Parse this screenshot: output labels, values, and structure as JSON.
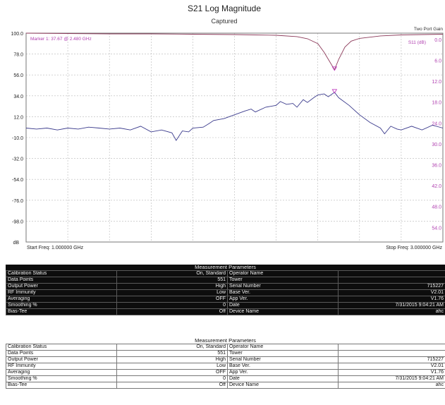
{
  "header": {
    "title": "S21 Log Magnitude",
    "subtitle": "Captured",
    "two_port_label": "Two Port Gain"
  },
  "chart_data": {
    "type": "line",
    "title": "S21 Log Magnitude",
    "subtitle": "Captured",
    "y_unit": "dB",
    "y_left_ticks": [
      "100.0",
      "78.0",
      "56.0",
      "34.0",
      "12.0",
      "-10.0",
      "-32.0",
      "-54.0",
      "-76.0",
      "-98.0"
    ],
    "y_left_range": [
      -120,
      100
    ],
    "y_right_label": "S11 (dB)",
    "y_right_ticks": [
      "0.0",
      "6.0",
      "12.0",
      "18.0",
      "24.0",
      "30.0",
      "36.0",
      "42.0",
      "48.0",
      "54.0"
    ],
    "y_right_range": [
      0,
      60
    ],
    "x_range_ghz": [
      1.0,
      3.0
    ],
    "start_label": "Start Freq: 1.000000 GHz",
    "stop_label": "Stop Freq: 3.000000 GHz",
    "marker_label": "Marker 1: 37.67 @ 2.480 GHz",
    "marker": {
      "freq": 2.48,
      "s21": 37.67,
      "s11": 10.5
    },
    "grid": true,
    "series": [
      {
        "name": "S21",
        "color": "#3a3a8c",
        "x": [
          1.0,
          1.05,
          1.1,
          1.15,
          1.2,
          1.25,
          1.3,
          1.35,
          1.4,
          1.45,
          1.5,
          1.55,
          1.6,
          1.65,
          1.7,
          1.72,
          1.75,
          1.78,
          1.8,
          1.85,
          1.88,
          1.9,
          1.95,
          2.0,
          2.05,
          2.08,
          2.1,
          2.15,
          2.2,
          2.22,
          2.25,
          2.28,
          2.3,
          2.33,
          2.35,
          2.38,
          2.4,
          2.43,
          2.45,
          2.48,
          2.5,
          2.55,
          2.6,
          2.65,
          2.7,
          2.72,
          2.75,
          2.78,
          2.8,
          2.85,
          2.9,
          2.95,
          3.0
        ],
        "y": [
          0,
          -1,
          0,
          -2,
          0,
          -1,
          1,
          0,
          -1,
          0,
          -2,
          2,
          -4,
          -2,
          -5,
          -13,
          -3,
          -4,
          0,
          1,
          5,
          8,
          10,
          14,
          18,
          20,
          17,
          22,
          24,
          28,
          25,
          26,
          22,
          30,
          27,
          32,
          35,
          36,
          33,
          37.67,
          32,
          24,
          14,
          6,
          0,
          -6,
          2,
          -1,
          -2,
          2,
          -2,
          3,
          0
        ]
      },
      {
        "name": "S11 (dB)",
        "color": "#8c3a5a",
        "x": [
          1.0,
          1.2,
          1.4,
          1.6,
          1.8,
          2.0,
          2.1,
          2.2,
          2.3,
          2.35,
          2.4,
          2.43,
          2.46,
          2.48,
          2.5,
          2.53,
          2.56,
          2.6,
          2.7,
          2.8,
          2.9,
          3.0
        ],
        "y": [
          0.0,
          0.1,
          0.2,
          0.2,
          0.3,
          0.4,
          0.5,
          0.6,
          1.0,
          1.6,
          3.0,
          5.5,
          8.5,
          10.5,
          7.5,
          4.0,
          2.3,
          1.5,
          0.8,
          0.5,
          0.4,
          0.3
        ]
      }
    ]
  },
  "measurement_dark": {
    "title": "Measurement Parameters",
    "rows": [
      [
        "Calibration Status",
        "On, Standard",
        "Operator Name",
        ""
      ],
      [
        "Data Points",
        "551",
        "Tower",
        ""
      ],
      [
        "Output Power",
        "High",
        "Serial Number",
        "715227"
      ],
      [
        "RF Immunity",
        "Low",
        "Base Ver.",
        "V2.01"
      ],
      [
        "Averaging",
        "OFF",
        "App Ver.",
        "V1.76"
      ],
      [
        "Smoothing %",
        "0",
        "Date",
        "7/31/2015 9:04:21 AM"
      ],
      [
        "Bias-Tee",
        "Off",
        "Device Name",
        "ahc"
      ]
    ]
  },
  "measurement_light": {
    "title": "Measurement Parameters",
    "rows": [
      [
        "Calibration Status",
        "On, Standard",
        "Operator Name",
        ""
      ],
      [
        "Data Points",
        "551",
        "Tower",
        ""
      ],
      [
        "Output Power",
        "High",
        "Serial Number",
        "715227"
      ],
      [
        "RF Immunity",
        "Low",
        "Base Ver.",
        "V2.01"
      ],
      [
        "Averaging",
        "OFF",
        "App Ver.",
        "V1.76"
      ],
      [
        "Smoothing %",
        "0",
        "Date",
        "7/31/2015 9:04:21 AM"
      ],
      [
        "Bias-Tee",
        "Off",
        "Device Name",
        "ahc"
      ]
    ]
  }
}
